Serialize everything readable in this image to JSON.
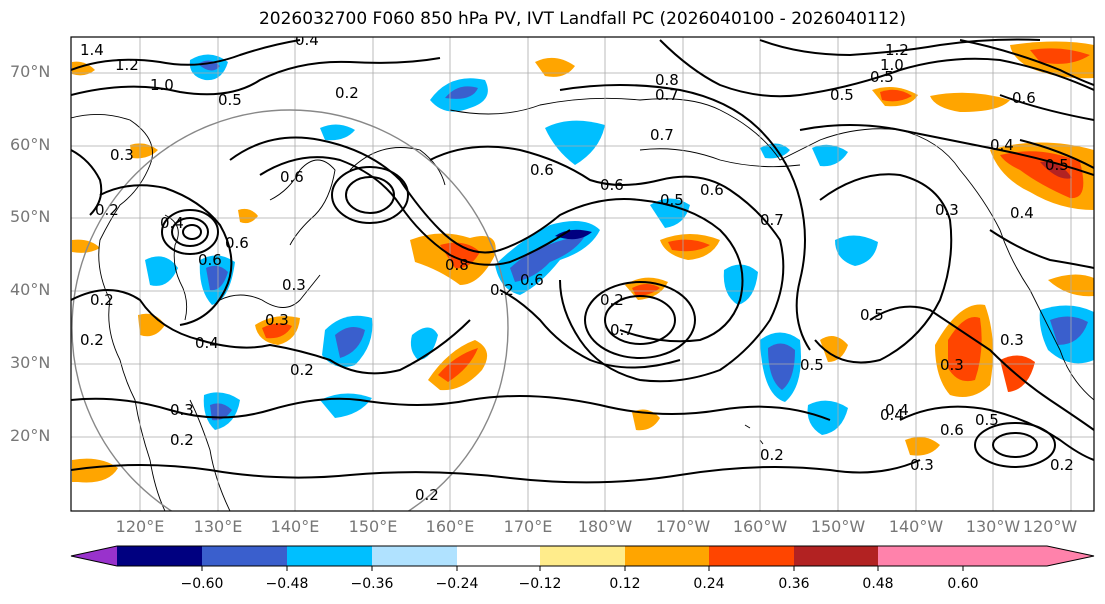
{
  "title": "2026032700 F060 850 hPa PV, IVT Landfall PC (2026040100 - 2026040112)",
  "map": {
    "lat_labels": [
      "70°N",
      "60°N",
      "50°N",
      "40°N",
      "30°N",
      "20°N"
    ],
    "lon_labels": [
      "120°E",
      "130°E",
      "140°E",
      "150°E",
      "160°E",
      "170°E",
      "180°W",
      "170°W",
      "160°W",
      "150°W",
      "140°W",
      "130°W",
      "120°W"
    ],
    "contour_labels": [
      "1.4",
      "1.2",
      "1.0",
      "0.5",
      "0.4",
      "0.2",
      "0.3",
      "0.6",
      "0.2",
      "0.6",
      "0.2",
      "0.4",
      "0.6",
      "0.3",
      "0.4",
      "0.2",
      "0.2",
      "0.3",
      "0.2",
      "0.3",
      "0.2",
      "0.2",
      "0.6",
      "0.6",
      "0.7",
      "0.8",
      "0.7",
      "0.5",
      "0.6",
      "0.7",
      "0.6",
      "0.7",
      "0.5",
      "0.5",
      "0.3",
      "0.4",
      "0.2",
      "0.2",
      "0.8",
      "1.2",
      "1.0",
      "0.5",
      "0.5",
      "0.6",
      "0.4",
      "0.5",
      "0.4",
      "0.3",
      "0.3",
      "0.6",
      "0.5",
      "0.4",
      "0.3",
      "0.2"
    ]
  },
  "colorbar": {
    "tick_labels": [
      "−0.60",
      "−0.48",
      "−0.36",
      "−0.24",
      "−0.12",
      "0.12",
      "0.24",
      "0.36",
      "0.48",
      "0.60"
    ],
    "colors": [
      "#9932CC",
      "#000080",
      "#3A5FCD",
      "#00BFFF",
      "#B0E2FF",
      "#FFFFFF",
      "#FFEC8B",
      "#FFA500",
      "#FF4500",
      "#B22222",
      "#FF82AB"
    ]
  }
}
